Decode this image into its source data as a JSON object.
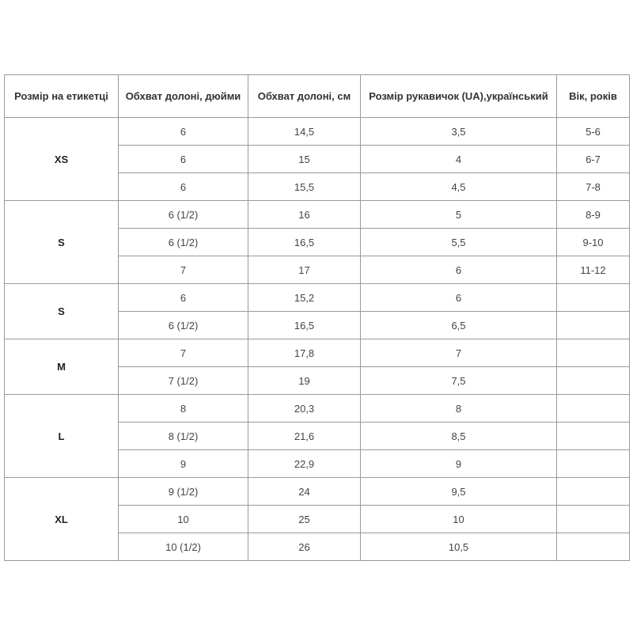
{
  "headers": [
    "Розмір на етикетці",
    "Обхват долоні, дюйми",
    "Обхват долоні, см",
    "Розмір рукавичок (UA),український",
    "Вік, років"
  ],
  "groups": [
    {
      "label": "XS",
      "rows": [
        [
          "6",
          "14,5",
          "3,5",
          "5-6"
        ],
        [
          "6",
          "15",
          "4",
          "6-7"
        ],
        [
          "6",
          "15,5",
          "4,5",
          "7-8"
        ]
      ]
    },
    {
      "label": "S",
      "rows": [
        [
          "6 (1/2)",
          "16",
          "5",
          "8-9"
        ],
        [
          "6 (1/2)",
          "16,5",
          "5,5",
          "9-10"
        ],
        [
          "7",
          "17",
          "6",
          "11-12"
        ]
      ]
    },
    {
      "label": "S",
      "rows": [
        [
          "6",
          "15,2",
          "6",
          ""
        ],
        [
          "6 (1/2)",
          "16,5",
          "6,5",
          ""
        ]
      ]
    },
    {
      "label": "M",
      "rows": [
        [
          "7",
          "17,8",
          "7",
          ""
        ],
        [
          "7 (1/2)",
          "19",
          "7,5",
          ""
        ]
      ]
    },
    {
      "label": "L",
      "rows": [
        [
          "8",
          "20,3",
          "8",
          ""
        ],
        [
          "8 (1/2)",
          "21,6",
          "8,5",
          ""
        ],
        [
          "9",
          "22,9",
          "9",
          ""
        ]
      ]
    },
    {
      "label": "XL",
      "rows": [
        [
          "9 (1/2)",
          "24",
          "9,5",
          ""
        ],
        [
          "10",
          "25",
          "10",
          ""
        ],
        [
          "10 (1/2)",
          "26",
          "10,5",
          ""
        ]
      ]
    }
  ]
}
